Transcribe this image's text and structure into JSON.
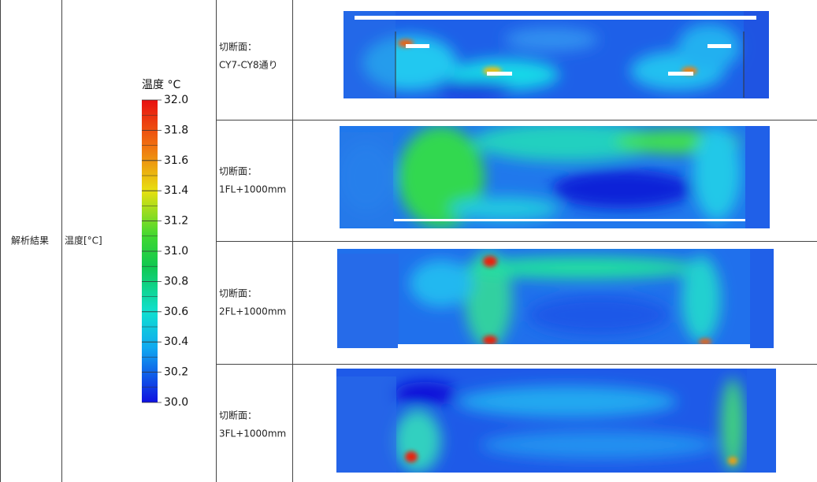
{
  "table": {
    "row_header": "解析結果",
    "column_header": "温度[°C]",
    "legend": {
      "title": "温度 °C",
      "range": [
        30,
        32
      ],
      "ticks": [
        {
          "value": 32,
          "label": "32.0"
        },
        {
          "value": 31.8,
          "label": "31.8"
        },
        {
          "value": 31.6,
          "label": "31.6"
        },
        {
          "value": 31.4,
          "label": "31.4"
        },
        {
          "value": 31.2,
          "label": "31.2"
        },
        {
          "value": 31,
          "label": "31.0"
        },
        {
          "value": 30.8,
          "label": "30.8"
        },
        {
          "value": 30.6,
          "label": "30.6"
        },
        {
          "value": 30.4,
          "label": "30.4"
        },
        {
          "value": 30.2,
          "label": "30.2"
        },
        {
          "value": 30,
          "label": "30.0"
        }
      ]
    },
    "sections": [
      {
        "label": [
          "切断面：",
          "CY7-CY8通り"
        ]
      },
      {
        "label": [
          "切断面：",
          "1FL+1000mm"
        ]
      },
      {
        "label": [
          "切断面：",
          "2FL+1000mm"
        ]
      },
      {
        "label": [
          "切断面：",
          "3FL+1000mm"
        ]
      }
    ]
  }
}
